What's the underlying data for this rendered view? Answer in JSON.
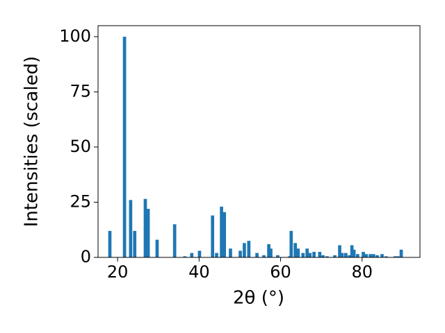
{
  "chart_data": {
    "type": "bar",
    "xlabel": "2θ (°)",
    "ylabel": "Intensities (scaled)",
    "x": [
      18.1,
      21.7,
      23.2,
      24.2,
      26.8,
      27.5,
      29.7,
      34.0,
      36.5,
      38.2,
      40.1,
      43.3,
      44.3,
      45.5,
      46.2,
      47.7,
      50.1,
      51.1,
      52.2,
      54.2,
      55.9,
      57.1,
      57.6,
      59.3,
      62.2,
      62.6,
      63.6,
      64.3,
      65.5,
      66.5,
      67.2,
      68.2,
      69.6,
      70.4,
      71.4,
      73.3,
      74.5,
      75.1,
      76.0,
      76.9,
      77.5,
      78.0,
      78.9,
      80.3,
      81.0,
      82.0,
      82.8,
      83.7,
      84.9,
      85.9,
      88.1,
      88.8,
      89.6
    ],
    "values": [
      12,
      100,
      26,
      12,
      26.5,
      22,
      8,
      15,
      0.5,
      2,
      3,
      19,
      2,
      23,
      20.5,
      4,
      3,
      6.5,
      7.5,
      2,
      1,
      6,
      4,
      1,
      0.5,
      12,
      6.5,
      4,
      2,
      4,
      2,
      2.5,
      2.5,
      1,
      0.5,
      1,
      5.5,
      2,
      2,
      1,
      5.5,
      3.5,
      1.5,
      2.5,
      1.5,
      1.5,
      1.5,
      1,
      1.5,
      0.5,
      0.5,
      0.5,
      3.5
    ],
    "bar_width": 0.8,
    "color": "#1f77b4",
    "xlim": [
      15.2,
      94.2
    ],
    "xticks": [
      20,
      40,
      60,
      80
    ],
    "ylim": [
      0,
      105
    ],
    "yticks": [
      0,
      25,
      50,
      75,
      100
    ]
  }
}
